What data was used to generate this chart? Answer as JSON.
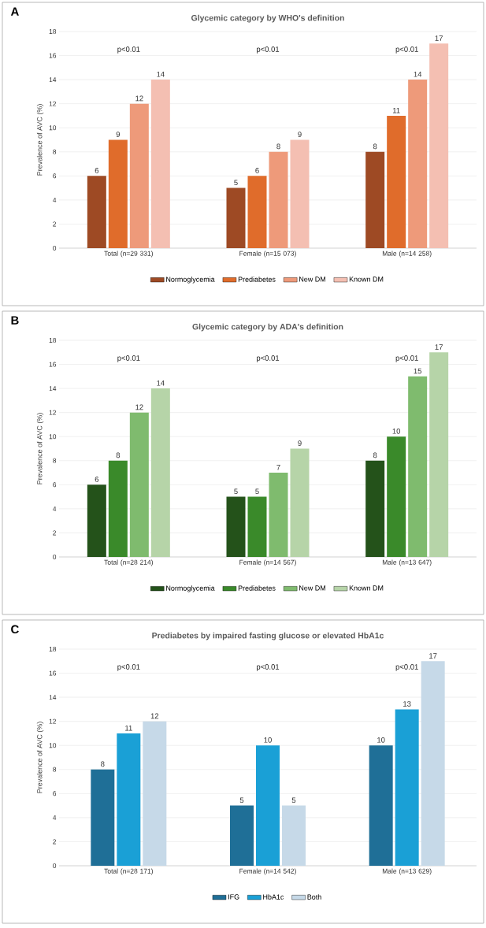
{
  "chart_data": [
    {
      "type": "bar",
      "title": "Glycemic category by WHO's definition",
      "ylabel": "Prevalence of AVC (%)",
      "annotations": [
        "A",
        "p<0.01",
        "p<0.01",
        "p<0.01"
      ],
      "categories": [
        "Total (n=29 331)",
        "Female (n=15 073)",
        "Male (n=14 258)"
      ],
      "series": [
        {
          "name": "Normoglycemia",
          "color": "#9e4a24",
          "values": [
            6,
            5,
            8
          ]
        },
        {
          "name": "Prediabetes",
          "color": "#e06c2b",
          "values": [
            9,
            6,
            11
          ]
        },
        {
          "name": "New DM",
          "color": "#ee9a7a",
          "values": [
            12,
            8,
            14
          ]
        },
        {
          "name": "Known DM",
          "color": "#f4bfb2",
          "values": [
            14,
            9,
            17
          ]
        }
      ],
      "ylim": [
        0,
        18
      ],
      "yticks": [
        0,
        2,
        4,
        6,
        8,
        10,
        12,
        14,
        16,
        18
      ],
      "grid": "y",
      "legend": "bottom",
      "data_labels": true
    },
    {
      "type": "bar",
      "title": "Glycemic category by ADA's definition",
      "ylabel": "Prevalence of AVC (%)",
      "annotations": [
        "B",
        "p<0.01",
        "p<0.01",
        "p<0.01"
      ],
      "categories": [
        "Total (n=28 214)",
        "Female (n=14 567)",
        "Male (n=13 647)"
      ],
      "series": [
        {
          "name": "Normoglycemia",
          "color": "#24521a",
          "values": [
            6,
            5,
            8
          ]
        },
        {
          "name": "Prediabetes",
          "color": "#3a8a2a",
          "values": [
            8,
            5,
            10
          ]
        },
        {
          "name": "New DM",
          "color": "#7fbb6e",
          "values": [
            12,
            7,
            15
          ]
        },
        {
          "name": "Known DM",
          "color": "#b6d4a8",
          "values": [
            14,
            9,
            17
          ]
        }
      ],
      "ylim": [
        0,
        18
      ],
      "yticks": [
        0,
        2,
        4,
        6,
        8,
        10,
        12,
        14,
        16,
        18
      ],
      "grid": "y",
      "legend": "bottom",
      "data_labels": true
    },
    {
      "type": "bar",
      "title": "Prediabetes by impaired fasting glucose or elevated HbA1c",
      "ylabel": "Prevalence of AVC (%)",
      "annotations": [
        "C",
        "p<0.01",
        "p<0.01",
        "p<0.01"
      ],
      "categories": [
        "Total (n=28 171)",
        "Female (n=14 542)",
        "Male (n=13 629)"
      ],
      "series": [
        {
          "name": "IFG",
          "color": "#1f6f97",
          "values": [
            8,
            5,
            10
          ]
        },
        {
          "name": "HbA1c",
          "color": "#1aa0d6",
          "values": [
            11,
            10,
            13
          ]
        },
        {
          "name": "Both",
          "color": "#c6d9e8",
          "values": [
            12,
            5,
            17
          ]
        }
      ],
      "ylim": [
        0,
        18
      ],
      "yticks": [
        0,
        2,
        4,
        6,
        8,
        10,
        12,
        14,
        16,
        18
      ],
      "grid": "y",
      "legend": "bottom",
      "data_labels": true
    }
  ]
}
